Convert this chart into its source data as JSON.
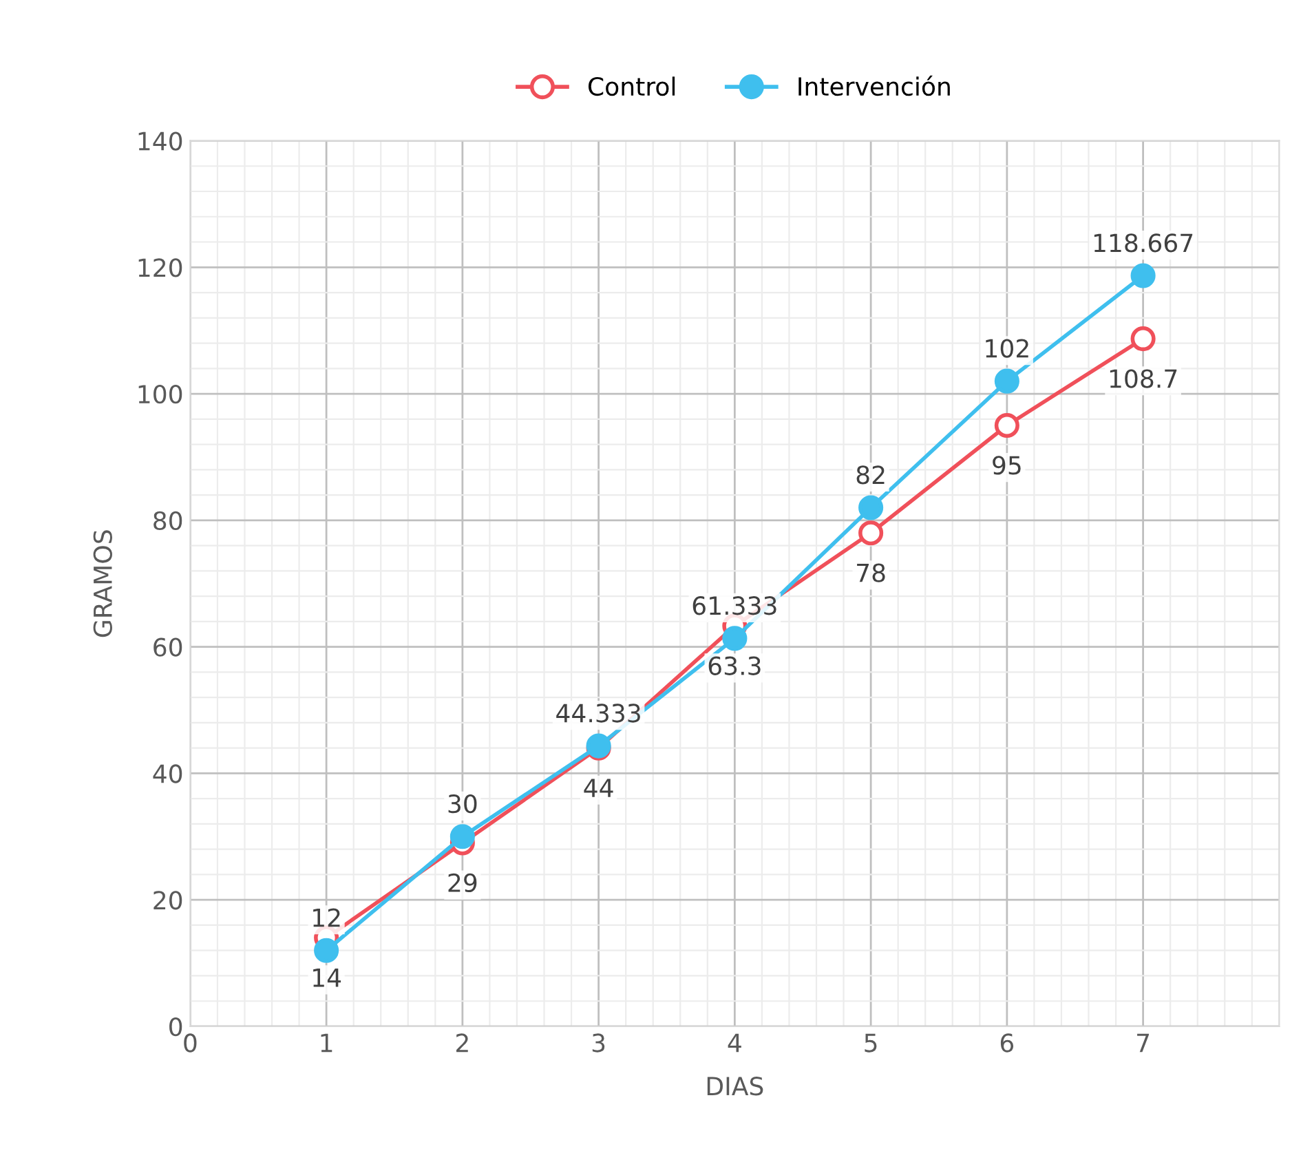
{
  "chart_data": {
    "type": "line",
    "xlabel": "DIAS",
    "ylabel": "GRAMOS",
    "x": [
      1,
      2,
      3,
      4,
      5,
      6,
      7
    ],
    "series": [
      {
        "name": "Control",
        "color": "#f0505a",
        "values": [
          14,
          29,
          44,
          63.3,
          78,
          95,
          108.7
        ]
      },
      {
        "name": "Intervención",
        "color": "#3fbfee",
        "values": [
          12,
          30,
          44.333,
          61.333,
          82,
          102,
          118.667
        ]
      }
    ],
    "xlim": [
      0,
      8
    ],
    "xticks": [
      0,
      1,
      2,
      3,
      4,
      5,
      6,
      7
    ],
    "ylim": [
      0,
      140
    ],
    "yticks": [
      0,
      20,
      40,
      60,
      80,
      100,
      120,
      140
    ],
    "grid": true,
    "legend": "top",
    "marker": "circle",
    "line_style": "solid",
    "data_labels": true
  }
}
